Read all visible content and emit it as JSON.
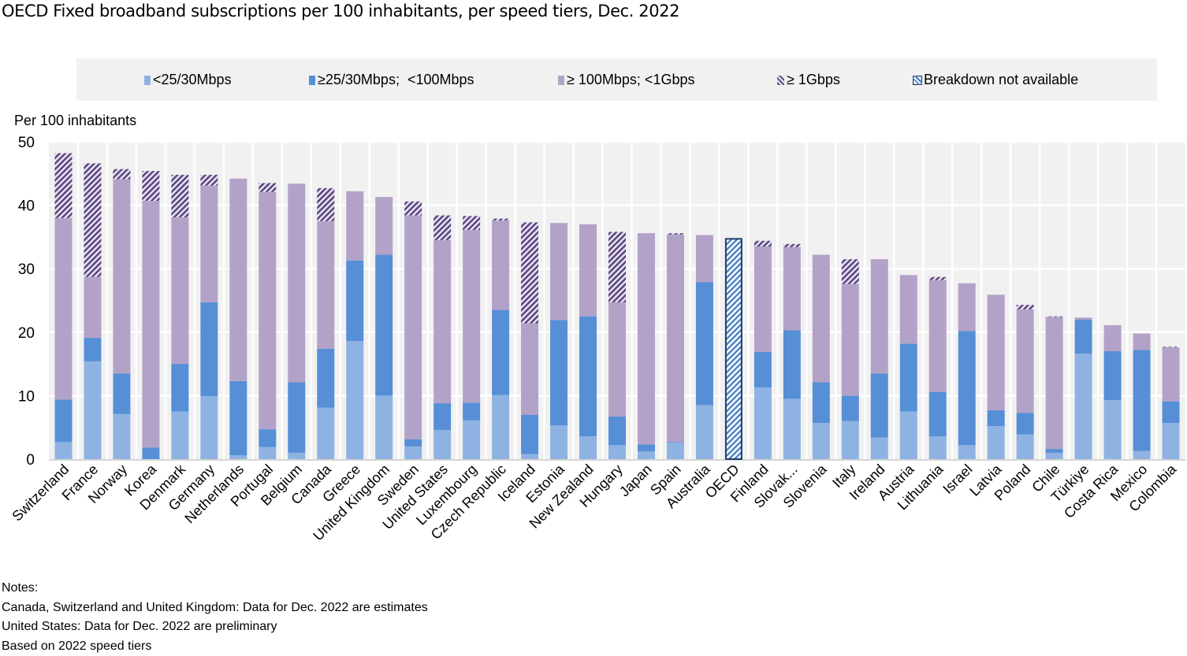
{
  "chart_data": {
    "type": "bar",
    "stacked": true,
    "title": "OECD Fixed broadband subscriptions per 100 inhabitants, per speed tiers, Dec. 2022",
    "ylabel": "Per 100 inhabitants",
    "xlabel": "",
    "ylim": [
      0,
      50
    ],
    "yticks": [
      0,
      10,
      20,
      30,
      40,
      50
    ],
    "grid": true,
    "legend_position": "top",
    "categories": [
      "Switzerland",
      "France",
      "Norway",
      "Korea",
      "Denmark",
      "Germany",
      "Netherlands",
      "Portugal",
      "Belgium",
      "Canada",
      "Greece",
      "United Kingdom",
      "Sweden",
      "United States",
      "Luxembourg",
      "Czech Republic",
      "Iceland",
      "Estonia",
      "New Zealand",
      "Hungary",
      "Japan",
      "Spain",
      "Australia",
      "OECD",
      "Finland",
      "Slovak...",
      "Slovenia",
      "Italy",
      "Ireland",
      "Austria",
      "Lithuania",
      "Israel",
      "Latvia",
      "Poland",
      "Chile",
      "Türkiye",
      "Costa Rica",
      "Mexico",
      "Colombia"
    ],
    "series": [
      {
        "name": "<25/30Mbps",
        "color": "#8eb3e2",
        "pattern": "solid",
        "values": [
          2.7,
          15.4,
          7.1,
          0.0,
          7.5,
          9.9,
          0.6,
          1.9,
          1.0,
          8.1,
          18.6,
          10.0,
          2.0,
          4.6,
          6.1,
          10.1,
          0.8,
          5.3,
          3.6,
          2.2,
          1.2,
          2.6,
          8.5,
          0,
          11.3,
          9.5,
          5.7,
          6.0,
          3.4,
          7.5,
          3.6,
          2.2,
          5.2,
          3.9,
          1.0,
          16.6,
          9.3,
          1.3,
          5.7
        ]
      },
      {
        "name": "≥25/30Mbps;  <100Mbps",
        "color": "#568fd6",
        "pattern": "solid",
        "values": [
          6.7,
          3.7,
          6.4,
          1.8,
          7.5,
          14.8,
          11.7,
          2.8,
          11.1,
          9.3,
          12.7,
          22.2,
          1.1,
          4.2,
          2.8,
          13.4,
          6.2,
          16.6,
          18.9,
          4.5,
          1.1,
          0.1,
          19.4,
          0,
          5.6,
          10.8,
          6.4,
          4.0,
          10.1,
          10.7,
          7.0,
          18.0,
          2.5,
          3.4,
          0.6,
          5.4,
          7.7,
          15.9,
          3.4
        ]
      },
      {
        "name": "≥ 100Mbps; <1Gbps",
        "color": "#b3a2c8",
        "pattern": "solid",
        "values": [
          28.6,
          9.6,
          30.6,
          38.9,
          23.1,
          18.4,
          31.9,
          37.4,
          31.3,
          20.1,
          10.9,
          9.1,
          35.3,
          25.7,
          27.2,
          14.1,
          14.4,
          15.3,
          14.5,
          18.0,
          33.3,
          32.7,
          7.4,
          0,
          16.6,
          13.1,
          20.1,
          17.6,
          18.0,
          10.8,
          17.6,
          7.5,
          18.2,
          16.3,
          20.8,
          0.3,
          4.1,
          2.6,
          8.5
        ]
      },
      {
        "name": "≥ 1Gbps",
        "color": "#5b4781",
        "pattern": "hatch",
        "values": [
          10.2,
          17.9,
          1.6,
          4.7,
          6.7,
          1.7,
          0.0,
          1.4,
          0.0,
          5.2,
          0.0,
          0.0,
          2.2,
          3.9,
          2.2,
          0.3,
          15.9,
          0.0,
          0.0,
          11.1,
          0.0,
          0.2,
          0.0,
          0,
          0.9,
          0.5,
          0.0,
          3.9,
          0.0,
          0.0,
          0.5,
          0.0,
          0.0,
          0.7,
          0.1,
          0.0,
          0.0,
          0.0,
          0.1
        ]
      },
      {
        "name": "Breakdown not available",
        "color": "#1f3f6b",
        "pattern": "hatch-outline",
        "values": [
          0,
          0,
          0,
          0,
          0,
          0,
          0,
          0,
          0,
          0,
          0,
          0,
          0,
          0,
          0,
          0,
          0,
          0,
          0,
          0,
          0,
          0,
          0,
          34.7,
          0,
          0,
          0,
          0,
          0,
          0,
          0,
          0,
          0,
          0,
          0,
          0,
          0,
          0,
          0
        ]
      }
    ]
  },
  "notes": {
    "heading": "Notes:",
    "lines": [
      "Canada, Switzerland and United Kingdom: Data for Dec. 2022 are estimates",
      "United States: Data for Dec. 2022 are preliminary",
      "Based on 2022 speed tiers"
    ]
  }
}
